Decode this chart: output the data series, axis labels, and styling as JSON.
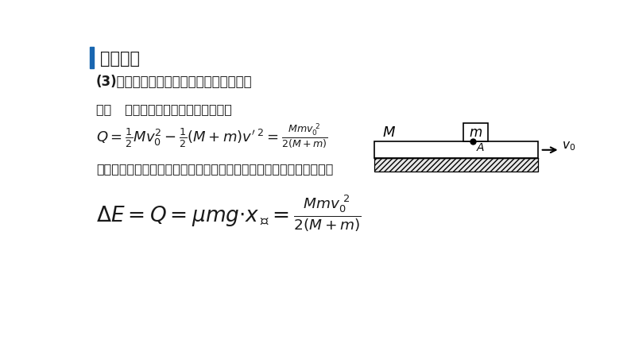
{
  "bg_color": "#ffffff",
  "title": "典型例题",
  "title_color": "#1a1a1a",
  "accent_color": "#1966b0",
  "line1": "(3)在全过程中有多少机械能转化为内能？",
  "line2_bold": "解析   方法一：由能量守恒定律可得，",
  "line3_method2": "方法二：根据功能关系，转化成的内能等于系统克服摩擦力做的功，即",
  "text_color": "#1a1a1a"
}
